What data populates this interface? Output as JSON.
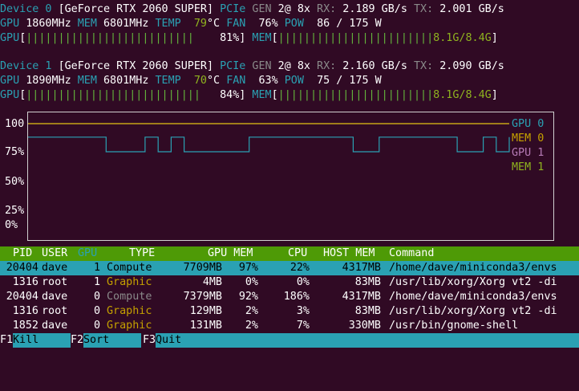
{
  "devices": [
    {
      "label": "Device 0",
      "name": "[GeForce RTX 2060 SUPER]",
      "pcie": "PCIe",
      "gen_label": "GEN",
      "gen": "2@ 8x",
      "rx_label": "RX:",
      "rx": "2.189 GB/s",
      "tx_label": "TX:",
      "tx": "2.001 GB/s",
      "gpu_label": "GPU",
      "gpu_clock": "1860MHz",
      "mem_label": "MEM",
      "mem_clock": "6801MHz",
      "temp_label": "TEMP",
      "temp": "79",
      "temp_unit": "°C",
      "fan_label": "FAN",
      "fan": "76%",
      "pow_label": "POW",
      "pow": "86 / 175 W",
      "gpu_bar_label": "GPU",
      "gpu_util": "81%",
      "gpu_util_value": 81,
      "mem_bar_label": "MEM",
      "mem_used": "8.1G/8.4G",
      "mem_util_value": 96
    },
    {
      "label": "Device 1",
      "name": "[GeForce RTX 2060 SUPER]",
      "pcie": "PCIe",
      "gen_label": "GEN",
      "gen": "2@ 8x",
      "rx_label": "RX:",
      "rx": "2.160 GB/s",
      "tx_label": "TX:",
      "tx": "2.090 GB/s",
      "gpu_label": "GPU",
      "gpu_clock": "1890MHz",
      "mem_label": "MEM",
      "mem_clock": "6801MHz",
      "temp_label": "TEMP",
      "temp": "70",
      "temp_unit": "°C",
      "fan_label": "FAN",
      "fan": "63%",
      "pow_label": "POW",
      "pow": "75 / 175 W",
      "gpu_bar_label": "GPU",
      "gpu_util": "84%",
      "gpu_util_value": 84,
      "mem_bar_label": "MEM",
      "mem_used": "8.1G/8.4G",
      "mem_util_value": 96
    }
  ],
  "chart_data": {
    "type": "line",
    "ytick_labels": [
      "100",
      "75%",
      "50%",
      "25%",
      "0%"
    ],
    "yticks": [
      100,
      75,
      50,
      25,
      0
    ],
    "ylim": [
      0,
      100
    ],
    "legend": [
      "GPU 0",
      "MEM 0",
      "GPU 1",
      "MEM 1"
    ],
    "legend_colors": [
      "#2aa1b3",
      "#c4a000",
      "#b57ab5",
      "#8fb31f"
    ],
    "series": [
      {
        "name": "GPU 0",
        "color": "#2aa1b3",
        "x": [
          0,
          6,
          6,
          9,
          9,
          10,
          10,
          11,
          11,
          12,
          12,
          17,
          17,
          25,
          25,
          27,
          27,
          33,
          33,
          35,
          35,
          36,
          36,
          37,
          37
        ],
        "values": [
          88,
          88,
          75,
          75,
          88,
          88,
          75,
          75,
          88,
          88,
          75,
          75,
          88,
          88,
          75,
          75,
          88,
          88,
          75,
          75,
          88,
          88,
          75,
          75,
          88
        ]
      },
      {
        "name": "MEM 0",
        "color": "#c4a000",
        "x": [
          0,
          37
        ],
        "values": [
          100,
          100
        ]
      },
      {
        "name": "GPU 1",
        "color": "#b57ab5",
        "x": [
          0,
          37
        ],
        "values": [
          100,
          100
        ]
      },
      {
        "name": "MEM 1",
        "color": "#8fb31f",
        "x": [
          0,
          37
        ],
        "values": [
          100,
          100
        ]
      }
    ]
  },
  "process_table": {
    "headers": [
      "PID",
      "USER",
      "GPU",
      "TYPE",
      "GPU MEM",
      "CPU",
      "HOST MEM",
      "Command"
    ],
    "rows": [
      {
        "pid": "20404",
        "user": "dave",
        "gpu": "1",
        "type": "Compute",
        "type_color": "#000000",
        "gpu_mem": "7709MB",
        "gpu_mem_pct": "97%",
        "cpu": "22%",
        "host_mem": "4317MB",
        "command": "/home/dave/miniconda3/envs",
        "selected": true
      },
      {
        "pid": "1316",
        "user": "root",
        "gpu": "1",
        "type": "Graphic",
        "type_color": "#c4a000",
        "gpu_mem": "4MB",
        "gpu_mem_pct": "0%",
        "cpu": "0%",
        "host_mem": "83MB",
        "command": "/usr/lib/xorg/Xorg vt2 -di",
        "selected": false
      },
      {
        "pid": "20404",
        "user": "dave",
        "gpu": "0",
        "type": "Compute",
        "type_color": "#8a8a8a",
        "gpu_mem": "7379MB",
        "gpu_mem_pct": "92%",
        "cpu": "186%",
        "host_mem": "4317MB",
        "command": "/home/dave/miniconda3/envs",
        "selected": false
      },
      {
        "pid": "1316",
        "user": "root",
        "gpu": "0",
        "type": "Graphic",
        "type_color": "#c4a000",
        "gpu_mem": "129MB",
        "gpu_mem_pct": "2%",
        "cpu": "3%",
        "host_mem": "83MB",
        "command": "/usr/lib/xorg/Xorg vt2 -di",
        "selected": false
      },
      {
        "pid": "1852",
        "user": "dave",
        "gpu": "0",
        "type": "Graphic",
        "type_color": "#c4a000",
        "gpu_mem": "131MB",
        "gpu_mem_pct": "2%",
        "cpu": "7%",
        "host_mem": "330MB",
        "command": "/usr/bin/gnome-shell",
        "selected": false
      }
    ]
  },
  "footer": [
    {
      "key": "F1",
      "label": "Kill"
    },
    {
      "key": "F2",
      "label": "Sort"
    },
    {
      "key": "F3",
      "label": "Quit"
    }
  ]
}
